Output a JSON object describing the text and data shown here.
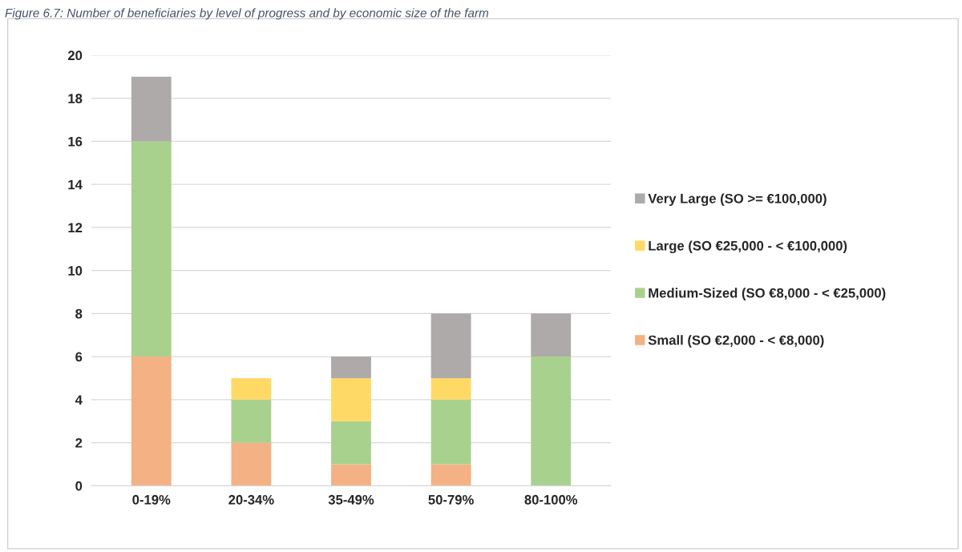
{
  "chart_data": {
    "type": "bar",
    "title": "Figure 6.7: Number of beneficiaries by level of progress and by economic size of the farm",
    "categories": [
      "0-19%",
      "20-34%",
      "35-49%",
      "50-79%",
      "80-100%"
    ],
    "stacked": true,
    "series": [
      {
        "name": "Small (SO €2,000 - < €8,000)",
        "color": "#f4b183",
        "values": [
          6,
          2,
          1,
          1,
          0
        ]
      },
      {
        "name": "Medium-Sized (SO €8,000 - < €25,000)",
        "color": "#a9d18e",
        "values": [
          10,
          2,
          2,
          3,
          6
        ]
      },
      {
        "name": "Large (SO €25,000 - < €100,000)",
        "color": "#ffd966",
        "values": [
          0,
          1,
          2,
          1,
          0
        ]
      },
      {
        "name": "Very Large (SO >= €100,000)",
        "color": "#aeaaaa",
        "values": [
          3,
          0,
          1,
          3,
          2
        ]
      }
    ],
    "ylim": [
      0,
      20
    ],
    "yticks": [
      0,
      2,
      4,
      6,
      8,
      10,
      12,
      14,
      16,
      18,
      20
    ],
    "grid": "y",
    "legend": "right"
  }
}
